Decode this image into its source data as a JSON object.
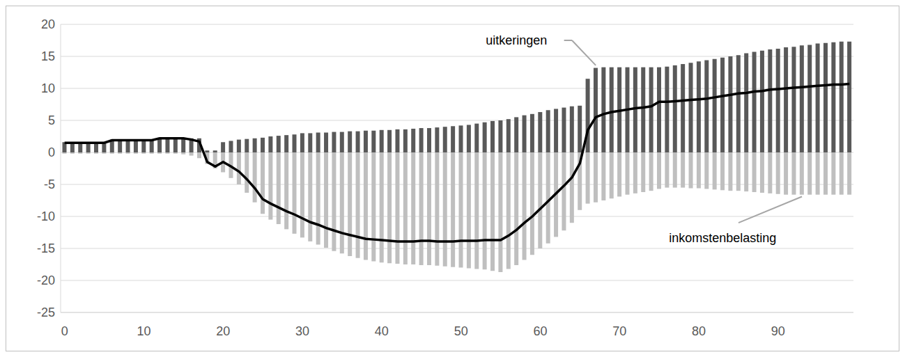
{
  "chart_data": {
    "type": "bar",
    "stacked": true,
    "grid": true,
    "categories": [
      0,
      null,
      null,
      null,
      null,
      null,
      null,
      null,
      null,
      null,
      10,
      null,
      null,
      null,
      null,
      null,
      null,
      null,
      null,
      null,
      20,
      null,
      null,
      null,
      null,
      null,
      null,
      null,
      null,
      null,
      30,
      null,
      null,
      null,
      null,
      null,
      null,
      null,
      null,
      null,
      40,
      null,
      null,
      null,
      null,
      null,
      null,
      null,
      null,
      null,
      50,
      null,
      null,
      null,
      null,
      null,
      null,
      null,
      null,
      null,
      60,
      null,
      null,
      null,
      null,
      null,
      null,
      null,
      null,
      null,
      70,
      null,
      null,
      null,
      null,
      null,
      null,
      null,
      null,
      null,
      80,
      null,
      null,
      null,
      null,
      null,
      null,
      null,
      null,
      null,
      90,
      null,
      null,
      null,
      null,
      null,
      null,
      null,
      null,
      null
    ],
    "ylim": [
      -25,
      20
    ],
    "yticks": [
      -25,
      -20,
      -15,
      -10,
      -5,
      0,
      5,
      10,
      15,
      20
    ],
    "series": [
      {
        "name": "uitkeringen",
        "type": "bar",
        "color": "#595959",
        "values": [
          1.6,
          1.6,
          1.6,
          1.6,
          1.6,
          1.6,
          2.0,
          2.0,
          2.0,
          2.0,
          2.0,
          2.0,
          2.3,
          2.3,
          2.3,
          2.2,
          2.2,
          2.2,
          0.3,
          0.3,
          1.6,
          1.8,
          2.0,
          2.1,
          2.2,
          2.3,
          2.5,
          2.6,
          2.7,
          2.8,
          3.0,
          3.0,
          3.1,
          3.1,
          3.2,
          3.2,
          3.3,
          3.3,
          3.4,
          3.4,
          3.5,
          3.5,
          3.6,
          3.6,
          3.7,
          3.8,
          3.8,
          3.9,
          4.0,
          4.1,
          4.2,
          4.3,
          4.5,
          4.7,
          4.9,
          5.0,
          5.2,
          5.5,
          5.8,
          6.0,
          6.3,
          6.6,
          6.8,
          7.0,
          7.2,
          7.3,
          11.5,
          13.2,
          13.3,
          13.3,
          13.3,
          13.3,
          13.3,
          13.3,
          13.3,
          13.3,
          13.4,
          13.6,
          13.8,
          14.0,
          14.2,
          14.4,
          14.6,
          14.8,
          15.0,
          15.2,
          15.5,
          15.7,
          15.9,
          16.1,
          16.2,
          16.4,
          16.5,
          16.7,
          16.8,
          17.0,
          17.1,
          17.2,
          17.3,
          17.3
        ]
      },
      {
        "name": "inkomstenbelasting",
        "type": "bar",
        "color": "#bfbfbf",
        "values": [
          -0.2,
          -0.2,
          -0.2,
          -0.2,
          -0.2,
          -0.2,
          -0.2,
          -0.2,
          -0.2,
          -0.2,
          -0.2,
          -0.2,
          -0.2,
          -0.2,
          -0.2,
          -0.3,
          -0.5,
          -0.9,
          -1.8,
          -2.5,
          -3.1,
          -4.0,
          -5.0,
          -6.3,
          -7.8,
          -9.6,
          -10.5,
          -11.2,
          -12.0,
          -12.7,
          -13.3,
          -13.9,
          -14.4,
          -14.9,
          -15.4,
          -15.8,
          -16.2,
          -16.5,
          -16.8,
          -17.0,
          -17.2,
          -17.3,
          -17.4,
          -17.5,
          -17.5,
          -17.6,
          -17.6,
          -17.7,
          -17.8,
          -17.9,
          -18.0,
          -18.1,
          -18.2,
          -18.3,
          -18.5,
          -18.7,
          -18.2,
          -17.6,
          -16.8,
          -16.0,
          -15.0,
          -14.2,
          -13.2,
          -12.2,
          -11.0,
          -9.0,
          -8.0,
          -7.8,
          -7.5,
          -7.2,
          -6.9,
          -6.6,
          -6.4,
          -6.2,
          -6.0,
          -5.7,
          -5.5,
          -5.5,
          -5.5,
          -5.6,
          -5.6,
          -5.7,
          -5.8,
          -5.9,
          -6.0,
          -6.0,
          -6.1,
          -6.2,
          -6.3,
          -6.4,
          -6.5,
          -6.6,
          -6.6,
          -6.6,
          -6.6,
          -6.6,
          -6.6,
          -6.6,
          -6.6,
          -6.6
        ]
      },
      {
        "type": "line",
        "color": "#000000",
        "marker": "none",
        "line_style": "solid",
        "values": [
          1.5,
          1.5,
          1.5,
          1.5,
          1.5,
          1.5,
          1.9,
          1.9,
          1.9,
          1.9,
          1.9,
          1.9,
          2.2,
          2.2,
          2.2,
          2.2,
          2.0,
          1.7,
          -1.5,
          -2.2,
          -1.5,
          -2.2,
          -3.0,
          -4.2,
          -5.6,
          -7.3,
          -8.0,
          -8.6,
          -9.2,
          -9.7,
          -10.3,
          -10.9,
          -11.3,
          -11.8,
          -12.2,
          -12.6,
          -12.9,
          -13.2,
          -13.5,
          -13.6,
          -13.7,
          -13.8,
          -13.9,
          -13.9,
          -13.9,
          -13.8,
          -13.8,
          -13.9,
          -13.9,
          -13.9,
          -13.8,
          -13.8,
          -13.8,
          -13.7,
          -13.7,
          -13.7,
          -13.0,
          -12.1,
          -11.0,
          -10.0,
          -8.8,
          -7.6,
          -6.4,
          -5.2,
          -3.9,
          -1.7,
          3.5,
          5.5,
          6.0,
          6.3,
          6.5,
          6.7,
          6.9,
          7.0,
          7.2,
          7.9,
          7.9,
          8.0,
          8.1,
          8.2,
          8.3,
          8.4,
          8.6,
          8.8,
          9.0,
          9.2,
          9.3,
          9.5,
          9.6,
          9.8,
          9.9,
          10.0,
          10.1,
          10.2,
          10.3,
          10.4,
          10.5,
          10.6,
          10.6,
          10.7
        ]
      }
    ]
  }
}
